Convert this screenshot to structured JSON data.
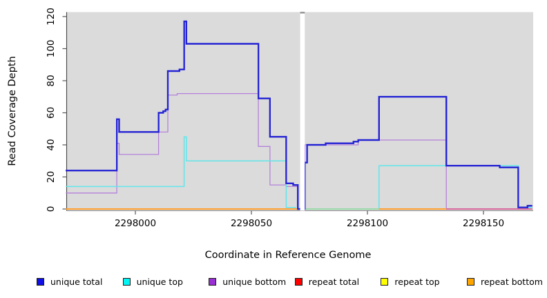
{
  "chart_data": {
    "type": "line",
    "subtype": "step-coverage-plot",
    "title": "",
    "xlabel": "Coordinate in Reference Genome",
    "ylabel": "Read Coverage Depth",
    "xlim": [
      2297970,
      2298171
    ],
    "ylim": [
      0,
      123
    ],
    "grid": false,
    "x_ticks": [
      {
        "value": 2298000,
        "label": "2298000"
      },
      {
        "value": 2298050,
        "label": "2298050"
      },
      {
        "value": 2298100,
        "label": "2298100"
      },
      {
        "value": 2298150,
        "label": "2298150"
      }
    ],
    "y_ticks": [
      {
        "value": 0,
        "label": "0"
      },
      {
        "value": 20,
        "label": "20"
      },
      {
        "value": 40,
        "label": "40"
      },
      {
        "value": 60,
        "label": "60"
      },
      {
        "value": 80,
        "label": "80"
      },
      {
        "value": 100,
        "label": "100"
      },
      {
        "value": 120,
        "label": "120"
      }
    ],
    "gap_region": {
      "start": 2298071,
      "end": 2298073,
      "fill": "#ffffff",
      "cap_color": "#999999"
    },
    "series": [
      {
        "name": "unique bottom",
        "color": "#B581DB",
        "width": 1.3,
        "xend": 2298171,
        "points": [
          [
            2297970,
            10
          ],
          [
            2297992,
            41
          ],
          [
            2297993,
            34
          ],
          [
            2298010,
            48
          ],
          [
            2298014,
            71
          ],
          [
            2298018,
            72
          ],
          [
            2298053,
            39
          ],
          [
            2298058,
            15
          ],
          [
            2298065,
            14
          ],
          [
            2298070,
            0
          ],
          [
            2298073,
            40
          ],
          [
            2298096,
            43
          ],
          [
            2298134,
            0
          ],
          [
            2298169,
            2
          ]
        ]
      },
      {
        "name": "unique top",
        "color": "#5FE6EA",
        "width": 1.5,
        "xend": 2298171,
        "points": [
          [
            2297970,
            14
          ],
          [
            2298021,
            45
          ],
          [
            2298022,
            30
          ],
          [
            2298065,
            1
          ],
          [
            2298069,
            0
          ],
          [
            2298105,
            27
          ],
          [
            2298165,
            1
          ]
        ]
      },
      {
        "name": "repeat total",
        "color": "#FF0000",
        "width": 1.2,
        "xend": 2298171,
        "points": [
          [
            2297970,
            0
          ]
        ]
      },
      {
        "name": "repeat top",
        "color": "#FFFF00",
        "width": 1.2,
        "xend": 2298171,
        "points": [
          [
            2297970,
            0
          ]
        ]
      },
      {
        "name": "repeat bottom",
        "color": "#FFA030",
        "width": 2.0,
        "xend": 2298171,
        "points": [
          [
            2297970,
            0
          ]
        ]
      },
      {
        "name": "unique total",
        "color": "#2322D4",
        "width": 2.2,
        "xend": 2298171,
        "points": [
          [
            2297970,
            24
          ],
          [
            2297992,
            56
          ],
          [
            2297993,
            48
          ],
          [
            2298010,
            60
          ],
          [
            2298012,
            61
          ],
          [
            2298013,
            62
          ],
          [
            2298014,
            86
          ],
          [
            2298019,
            87
          ],
          [
            2298021,
            117
          ],
          [
            2298022,
            103
          ],
          [
            2298053,
            69
          ],
          [
            2298058,
            45
          ],
          [
            2298065,
            16
          ],
          [
            2298068,
            15
          ],
          [
            2298070,
            0
          ],
          [
            2298073,
            29
          ],
          [
            2298074,
            40
          ],
          [
            2298082,
            41
          ],
          [
            2298094,
            42
          ],
          [
            2298096,
            43
          ],
          [
            2298105,
            70
          ],
          [
            2298134,
            27
          ],
          [
            2298157,
            26
          ],
          [
            2298165,
            1
          ],
          [
            2298169,
            2
          ]
        ]
      }
    ],
    "baseline_segments": [
      {
        "x1": 2297970,
        "x2": 2298071,
        "color": "#FF9E2C"
      },
      {
        "x1": 2298072,
        "x2": 2298105,
        "color": "#98D9A9"
      },
      {
        "x1": 2298105,
        "x2": 2298134,
        "color": "#FF9E2C"
      },
      {
        "x1": 2298134,
        "x2": 2298171,
        "color": "#D6679B"
      }
    ],
    "legend": {
      "position": "bottom",
      "items": [
        {
          "label": "unique total",
          "color": "#0F0FE6"
        },
        {
          "label": "unique top",
          "color": "#00F5F5"
        },
        {
          "label": "unique bottom",
          "color": "#9A2FD6"
        },
        {
          "label": "repeat total",
          "color": "#FF0000"
        },
        {
          "label": "repeat top",
          "color": "#FFFF00"
        },
        {
          "label": "repeat bottom",
          "color": "#FFA500"
        }
      ]
    }
  },
  "colors": {
    "page_bg": "#FFFFFF",
    "plot_bg": "#DBDBDB",
    "axis_line": "#444444",
    "tick_mark": "#555555",
    "text": "#000000"
  }
}
